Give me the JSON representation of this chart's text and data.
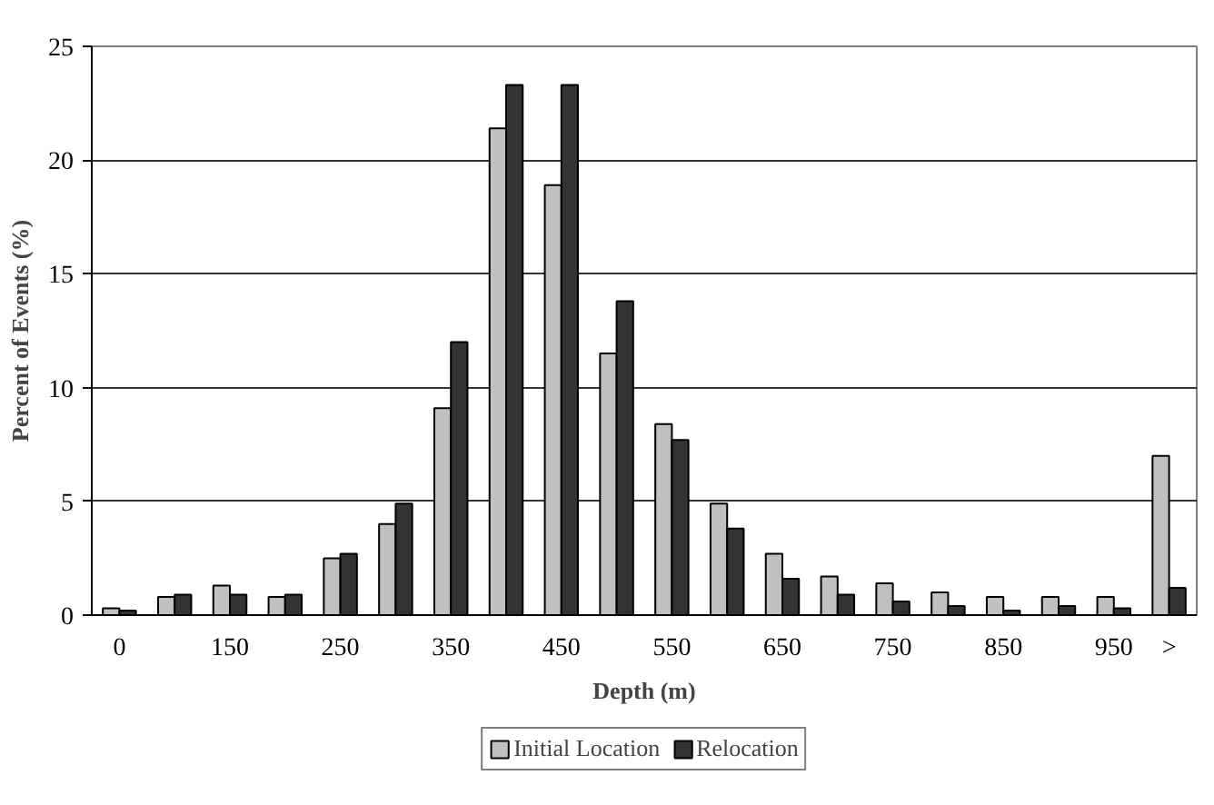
{
  "chart_data": {
    "type": "bar",
    "xlabel": "Depth (m)",
    "ylabel": "Percent of Events (%)",
    "categories": [
      "0",
      null,
      "150",
      null,
      "250",
      null,
      "350",
      null,
      "450",
      null,
      "550",
      null,
      "650",
      null,
      "750",
      null,
      "850",
      null,
      "950",
      ">"
    ],
    "series": [
      {
        "name": "Initial Location",
        "color": "#c0c0c0",
        "values": [
          0.3,
          0.8,
          1.3,
          0.8,
          2.5,
          4.0,
          9.1,
          21.4,
          18.9,
          11.5,
          8.4,
          4.9,
          2.7,
          1.7,
          1.4,
          1.0,
          0.8,
          0.8,
          0.8,
          7.0
        ]
      },
      {
        "name": "Relocation",
        "color": "#333333",
        "values": [
          0.2,
          0.9,
          0.9,
          0.9,
          2.7,
          4.9,
          12.0,
          23.3,
          23.3,
          13.8,
          7.7,
          3.8,
          1.6,
          0.9,
          0.6,
          0.4,
          0.2,
          0.4,
          0.3,
          1.2
        ]
      }
    ],
    "ylim": [
      0,
      25
    ],
    "yticks": [
      0,
      5,
      10,
      15,
      20,
      25
    ],
    "grid": "y",
    "legend": "bottom"
  }
}
